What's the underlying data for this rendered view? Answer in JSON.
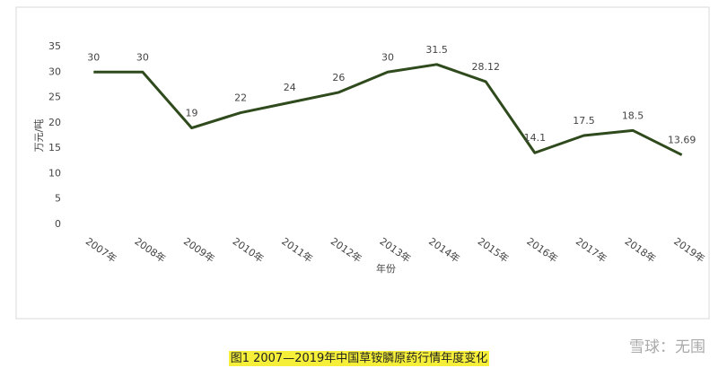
{
  "chart_data": {
    "type": "line",
    "categories": [
      "2007年",
      "2008年",
      "2009年",
      "2010年",
      "2011年",
      "2012年",
      "2013年",
      "2014年",
      "2015年",
      "2016年",
      "2017年",
      "2018年",
      "2019年"
    ],
    "series": [
      {
        "color": "#2f4a1c",
        "values": [
          30,
          30,
          19,
          22,
          24,
          26,
          30,
          31.5,
          28.12,
          14.1,
          17.5,
          18.5,
          13.69
        ]
      }
    ],
    "ylim": [
      0,
      35
    ],
    "yticks": [
      0,
      5,
      10,
      15,
      20,
      25,
      30,
      35
    ],
    "ylabel": "万元/吨",
    "xlabel": "年份",
    "grid": false
  },
  "caption": "图1  2007—2019年中国草铵膦原药行情年度变化",
  "watermark": "雪球：无围"
}
